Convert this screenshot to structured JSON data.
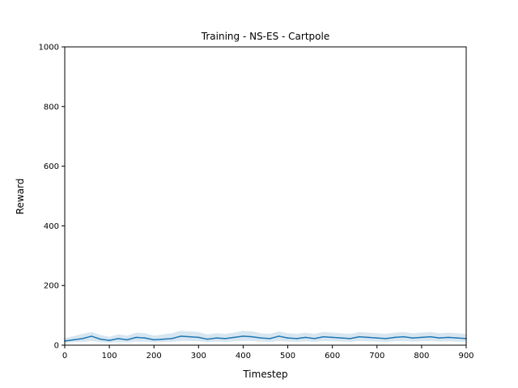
{
  "chart_data": {
    "type": "line",
    "title": "Training - NS-ES - Cartpole",
    "xlabel": "Timestep",
    "ylabel": "Reward",
    "xlim": [
      0,
      900
    ],
    "ylim": [
      0,
      1000
    ],
    "xticks": [
      "0",
      "100",
      "200",
      "300",
      "400",
      "500",
      "600",
      "700",
      "800",
      "900"
    ],
    "yticks": [
      "0",
      "200",
      "400",
      "600",
      "800",
      "1000"
    ],
    "grid": false,
    "legend": "none",
    "series": [
      {
        "color": "#1f77b4",
        "band_color": "#1f77b4",
        "x": [
          0,
          20,
          40,
          60,
          80,
          100,
          120,
          140,
          160,
          180,
          200,
          220,
          240,
          260,
          280,
          300,
          320,
          340,
          360,
          380,
          400,
          420,
          440,
          460,
          480,
          500,
          520,
          540,
          560,
          580,
          600,
          620,
          640,
          660,
          680,
          700,
          720,
          740,
          760,
          780,
          800,
          820,
          840,
          860,
          880,
          900
        ],
        "values": [
          14,
          18,
          22,
          30,
          20,
          16,
          22,
          18,
          26,
          24,
          18,
          20,
          22,
          30,
          28,
          26,
          20,
          24,
          22,
          26,
          30,
          28,
          24,
          22,
          30,
          24,
          22,
          26,
          22,
          28,
          26,
          24,
          22,
          28,
          26,
          24,
          22,
          26,
          28,
          24,
          26,
          28,
          24,
          26,
          24,
          22
        ],
        "lower": [
          8,
          10,
          10,
          14,
          10,
          8,
          10,
          9,
          12,
          12,
          9,
          10,
          11,
          14,
          14,
          13,
          10,
          12,
          11,
          13,
          14,
          14,
          12,
          11,
          14,
          12,
          11,
          13,
          11,
          14,
          13,
          12,
          11,
          14,
          13,
          12,
          11,
          13,
          14,
          12,
          13,
          14,
          12,
          13,
          12,
          11
        ],
        "upper": [
          24,
          30,
          38,
          44,
          34,
          28,
          36,
          32,
          42,
          40,
          32,
          36,
          40,
          48,
          46,
          44,
          36,
          40,
          38,
          42,
          48,
          46,
          40,
          38,
          46,
          40,
          38,
          42,
          38,
          44,
          42,
          40,
          38,
          44,
          42,
          40,
          38,
          42,
          44,
          40,
          42,
          44,
          40,
          42,
          40,
          38
        ]
      }
    ]
  }
}
